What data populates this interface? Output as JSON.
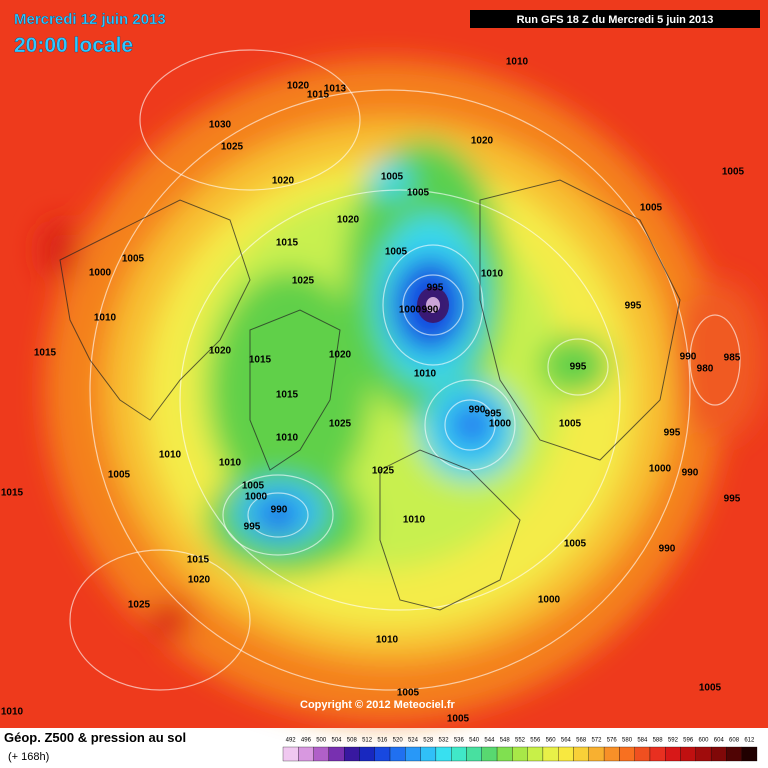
{
  "header": {
    "date": "Mercredi 12 juin 2013",
    "time": "20:00 locale",
    "run": "Run GFS 18 Z du Mercredi 5 juin 2013"
  },
  "copyright": "Copyright © 2012 Meteociel.fr",
  "footer": {
    "title": "Géop. Z500 & pression au sol",
    "lead": "(+ 168h)"
  },
  "legend": {
    "levels": [
      492,
      496,
      500,
      504,
      508,
      512,
      516,
      520,
      524,
      528,
      532,
      536,
      540,
      544,
      548,
      552,
      556,
      560,
      564,
      568,
      572,
      576,
      580,
      584,
      588,
      592,
      596,
      600,
      604,
      608,
      612
    ],
    "colors": [
      "#f0c8f0",
      "#d898e0",
      "#b060c8",
      "#7830b0",
      "#3818a0",
      "#1828c0",
      "#1848e0",
      "#2070f0",
      "#2898f8",
      "#30c0f8",
      "#38e0f0",
      "#40e8c8",
      "#48e0a0",
      "#58d870",
      "#80e050",
      "#a8e848",
      "#c8f048",
      "#e8f048",
      "#f8e840",
      "#f8d038",
      "#f8b030",
      "#f89028",
      "#f87020",
      "#f05020",
      "#e83020",
      "#d81818",
      "#c01010",
      "#a00c0c",
      "#800808",
      "#500404",
      "#200000"
    ]
  },
  "isobar_labels": [
    1010,
    1020,
    1015,
    1013,
    1030,
    1025,
    1020,
    1005,
    1005,
    1020,
    1005,
    1005,
    1020,
    1005,
    1000,
    1015,
    1005,
    1010,
    1025,
    995,
    1000,
    990,
    995,
    1010,
    1015,
    1020,
    1015,
    1020,
    995,
    990,
    985,
    980,
    1010,
    1015,
    990,
    995,
    1000,
    1005,
    1025,
    1010,
    995,
    1010,
    1010,
    1000,
    990,
    1025,
    1005,
    1005,
    1000,
    1015,
    995,
    990,
    995,
    1010,
    1005,
    990,
    1015,
    1020,
    1000,
    1025,
    1010,
    1005,
    1005,
    1010,
    1005
  ]
}
